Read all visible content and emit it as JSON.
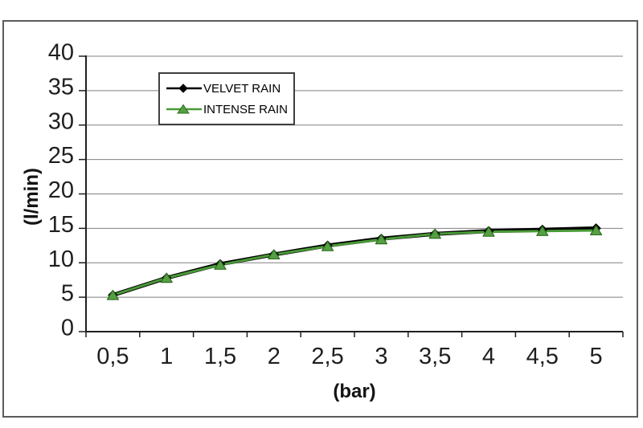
{
  "frame": {
    "background": "#ffffff",
    "border_color": "#5c5c5c"
  },
  "chart_data": {
    "type": "line",
    "title": "",
    "xlabel": "(bar)",
    "ylabel": "(l/min)",
    "x_tick_labels": [
      "0,5",
      "1",
      "1,5",
      "2",
      "2,5",
      "3",
      "3,5",
      "4",
      "4,5",
      "5"
    ],
    "x_values": [
      0.5,
      1,
      1.5,
      2,
      2.5,
      3,
      3.5,
      4,
      4.5,
      5
    ],
    "y_ticks": [
      0,
      5,
      10,
      15,
      20,
      25,
      30,
      35,
      40
    ],
    "ylim": [
      0,
      40
    ],
    "grid": "horizontal-only",
    "grid_color": "#808080",
    "axis_color": "#1f1f1f",
    "tick_label_color": "#1f1f1f",
    "legend": {
      "position": "top-left-inside",
      "border_color": "#3f3f3f",
      "background": "#ffffff"
    },
    "series": [
      {
        "name": "VELVET RAIN",
        "marker": "diamond",
        "line_color": "#000000",
        "marker_fill": "#000000",
        "marker_edge": "#000000",
        "values": [
          5.3,
          7.8,
          9.8,
          11.2,
          12.5,
          13.5,
          14.2,
          14.6,
          14.8,
          15.0
        ]
      },
      {
        "name": "INTENSE RAIN",
        "marker": "triangle-up",
        "line_color": "#4a9a38",
        "marker_fill": "#55a042",
        "marker_edge": "#2f6d20",
        "values": [
          5.3,
          7.8,
          9.7,
          11.2,
          12.4,
          13.4,
          14.2,
          14.5,
          14.6,
          14.7
        ]
      }
    ]
  }
}
